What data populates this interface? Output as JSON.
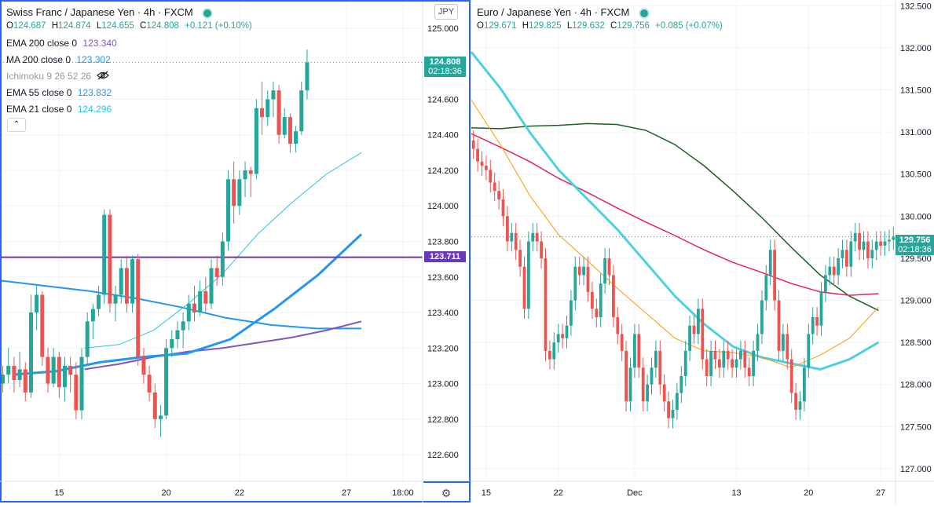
{
  "chart_data": [
    {
      "type": "candlestick",
      "title": "Swiss Franc / Japanese Yen · 4h · FXCM",
      "ohlc_readout": {
        "o_label": "O",
        "o": "124.687",
        "h_label": "H",
        "h": "124.874",
        "l_label": "L",
        "l": "124.655",
        "c_label": "C",
        "c": "124.808",
        "change": "+0.121 (+0.10%)"
      },
      "currency": "JPY",
      "indicators": [
        {
          "label": "EMA 200 close 0",
          "value": "123.340",
          "color": "#7e57c2"
        },
        {
          "label": "MA 200 close 0",
          "value": "123.302",
          "color": "#2196f3"
        },
        {
          "label": "Ichimoku 9 26 52 26",
          "value": "",
          "color": "#9598a1"
        },
        {
          "label": "EMA 55 close 0",
          "value": "123.832",
          "color": "#2196f3"
        },
        {
          "label": "EMA 21 close 0",
          "value": "124.296",
          "color": "#26c6da"
        }
      ],
      "ylim": [
        122.45,
        125.15
      ],
      "y_ticks": [
        "125.000",
        "124.600",
        "124.400",
        "124.200",
        "124.000",
        "123.800",
        "123.600",
        "123.400",
        "123.200",
        "123.000",
        "122.800",
        "122.600"
      ],
      "y_tick_values": [
        125.0,
        124.6,
        124.4,
        124.2,
        124.0,
        123.8,
        123.6,
        123.4,
        123.2,
        123.0,
        122.8,
        122.6
      ],
      "x_ticks": [
        {
          "label": "15",
          "t": 10
        },
        {
          "label": "20",
          "t": 29
        },
        {
          "label": "22",
          "t": 42
        },
        {
          "label": "27",
          "t": 61
        },
        {
          "label": "18:00",
          "t": 71
        }
      ],
      "x_count": 75,
      "last_price": "124.808",
      "last_price_value": 124.808,
      "countdown": "02:18:36",
      "hline_price": "123.711",
      "hline_value": 123.711,
      "bars": [
        [
          123.0,
          123.1,
          122.95,
          123.05
        ],
        [
          123.05,
          123.2,
          123.0,
          123.1
        ],
        [
          123.1,
          123.15,
          122.95,
          123.02
        ],
        [
          123.02,
          123.18,
          122.98,
          123.08
        ],
        [
          123.08,
          123.12,
          122.9,
          122.95
        ],
        [
          122.95,
          123.5,
          122.92,
          123.4
        ],
        [
          123.4,
          123.55,
          123.3,
          123.5
        ],
        [
          123.5,
          123.52,
          123.1,
          123.15
        ],
        [
          123.15,
          123.2,
          122.95,
          123.0
        ],
        [
          123.0,
          123.2,
          122.98,
          123.15
        ],
        [
          123.15,
          123.18,
          122.92,
          122.98
        ],
        [
          122.98,
          123.15,
          122.9,
          123.1
        ],
        [
          123.1,
          123.15,
          122.95,
          123.05
        ],
        [
          123.05,
          123.12,
          122.8,
          122.85
        ],
        [
          122.85,
          123.2,
          122.8,
          123.15
        ],
        [
          123.15,
          123.4,
          123.1,
          123.35
        ],
        [
          123.35,
          123.45,
          123.25,
          123.42
        ],
        [
          123.42,
          123.55,
          123.38,
          123.5
        ],
        [
          123.5,
          123.98,
          123.45,
          123.95
        ],
        [
          123.95,
          123.98,
          123.4,
          123.45
        ],
        [
          123.45,
          123.55,
          123.35,
          123.5
        ],
        [
          123.5,
          123.7,
          123.45,
          123.65
        ],
        [
          123.65,
          123.72,
          123.4,
          123.45
        ],
        [
          123.45,
          123.72,
          123.4,
          123.7
        ],
        [
          123.7,
          123.73,
          123.1,
          123.15
        ],
        [
          123.15,
          123.2,
          123.0,
          123.05
        ],
        [
          123.05,
          123.1,
          122.9,
          122.95
        ],
        [
          122.95,
          123.0,
          122.75,
          122.8
        ],
        [
          122.8,
          122.88,
          122.7,
          122.82
        ],
        [
          122.82,
          123.25,
          122.8,
          123.2
        ],
        [
          123.2,
          123.3,
          123.15,
          123.25
        ],
        [
          123.25,
          123.35,
          123.2,
          123.3
        ],
        [
          123.3,
          123.4,
          123.2,
          123.35
        ],
        [
          123.35,
          123.5,
          123.3,
          123.45
        ],
        [
          123.45,
          123.55,
          123.35,
          123.4
        ],
        [
          123.4,
          123.58,
          123.38,
          123.52
        ],
        [
          123.52,
          123.6,
          123.4,
          123.45
        ],
        [
          123.45,
          123.7,
          123.42,
          123.65
        ],
        [
          123.65,
          123.72,
          123.55,
          123.6
        ],
        [
          123.6,
          123.85,
          123.55,
          123.8
        ],
        [
          123.8,
          124.2,
          123.75,
          124.15
        ],
        [
          124.15,
          124.25,
          123.9,
          124.0
        ],
        [
          124.0,
          124.2,
          123.95,
          124.15
        ],
        [
          124.15,
          124.25,
          124.05,
          124.2
        ],
        [
          124.2,
          124.22,
          124.05,
          124.18
        ],
        [
          124.18,
          124.6,
          124.15,
          124.55
        ],
        [
          124.55,
          124.7,
          124.4,
          124.5
        ],
        [
          124.5,
          124.65,
          124.45,
          124.6
        ],
        [
          124.6,
          124.7,
          124.5,
          124.65
        ],
        [
          124.65,
          124.68,
          124.35,
          124.4
        ],
        [
          124.4,
          124.55,
          124.38,
          124.5
        ],
        [
          124.5,
          124.52,
          124.3,
          124.35
        ],
        [
          124.35,
          124.45,
          124.3,
          124.42
        ],
        [
          124.42,
          124.7,
          124.4,
          124.65
        ],
        [
          124.65,
          124.88,
          124.6,
          124.808
        ]
      ],
      "ema21": [
        123.2,
        123.22,
        123.3,
        123.45,
        123.62,
        123.84,
        124.02,
        124.18,
        124.3
      ],
      "ema55": [
        123.05,
        123.07,
        123.12,
        123.15,
        123.17,
        123.25,
        123.42,
        123.61,
        123.84
      ],
      "ma200": [
        123.58,
        123.55,
        123.52,
        123.48,
        123.43,
        123.37,
        123.33,
        123.31,
        123.31
      ],
      "ema200": [
        123.08,
        123.11,
        123.15,
        123.18,
        123.2,
        123.23,
        123.26,
        123.3,
        123.35
      ]
    },
    {
      "type": "candlestick",
      "title": "Euro / Japanese Yen · 4h · FXCM",
      "ohlc_readout": {
        "o_label": "O",
        "o": "129.671",
        "h_label": "H",
        "h": "129.825",
        "l_label": "L",
        "l": "129.632",
        "c_label": "C",
        "c": "129.756",
        "change": "+0.085 (+0.07%)"
      },
      "ylim": [
        126.85,
        132.55
      ],
      "y_ticks": [
        "132.500",
        "132.000",
        "131.500",
        "131.000",
        "130.500",
        "130.000",
        "129.500",
        "129.000",
        "128.500",
        "128.000",
        "127.500",
        "127.000"
      ],
      "y_tick_values": [
        132.5,
        132.0,
        131.5,
        131.0,
        130.5,
        130.0,
        129.5,
        129.0,
        128.5,
        128.0,
        127.5,
        127.0
      ],
      "x_ticks": [
        {
          "label": "15",
          "t": 3
        },
        {
          "label": "22",
          "t": 20
        },
        {
          "label": "Dec",
          "t": 38
        },
        {
          "label": "13",
          "t": 62
        },
        {
          "label": "20",
          "t": 79
        },
        {
          "label": "27",
          "t": 96
        }
      ],
      "x_count": 100,
      "last_price": "129.756",
      "last_price_value": 129.756,
      "countdown": "02:18:36",
      "closes": [
        130.8,
        130.65,
        130.6,
        130.55,
        130.4,
        130.3,
        130.2,
        130.0,
        129.7,
        129.8,
        129.6,
        129.4,
        128.9,
        129.7,
        129.8,
        129.7,
        129.5,
        128.4,
        128.3,
        128.5,
        128.6,
        128.55,
        128.7,
        129.0,
        129.4,
        129.3,
        129.4,
        129.1,
        128.9,
        128.8,
        129.2,
        129.5,
        129.3,
        128.8,
        128.6,
        128.4,
        127.8,
        128.2,
        128.6,
        128.2,
        127.8,
        128.0,
        128.2,
        128.4,
        128.0,
        127.8,
        127.6,
        127.7,
        127.9,
        128.1,
        128.4,
        128.7,
        128.6,
        128.9,
        128.3,
        128.1,
        128.4,
        128.3,
        128.2,
        128.4,
        128.3,
        128.2,
        128.3,
        128.4,
        128.2,
        128.1,
        128.4,
        128.6,
        129.0,
        129.3,
        129.6,
        129.0,
        128.4,
        128.6,
        128.3,
        127.9,
        127.7,
        127.8,
        128.2,
        128.6,
        128.8,
        128.7,
        129.1,
        129.3,
        129.4,
        129.3,
        129.5,
        129.6,
        129.4,
        129.7,
        129.8,
        129.6,
        129.7,
        129.5,
        129.6,
        129.7,
        129.65,
        129.7,
        129.72,
        129.756
      ],
      "ema200": [
        131.05,
        131.04,
        131.07,
        131.08,
        131.1,
        131.09,
        131.02,
        130.85,
        130.6,
        130.3,
        129.98,
        129.63,
        129.3,
        129.05,
        128.88
      ],
      "ma200": [
        130.98,
        130.82,
        130.65,
        130.45,
        130.28,
        130.1,
        129.93,
        129.77,
        129.6,
        129.45,
        129.33,
        129.2,
        129.1,
        129.06,
        129.08
      ],
      "ema55": [
        131.95,
        131.52,
        131.0,
        130.55,
        130.2,
        129.85,
        129.45,
        129.05,
        128.72,
        128.45,
        128.32,
        128.25,
        128.18,
        128.3,
        128.5
      ],
      "ema21": [
        131.38,
        130.85,
        130.25,
        129.78,
        129.47,
        129.15,
        128.85,
        128.55,
        128.4,
        128.38,
        128.32,
        128.2,
        128.35,
        128.55,
        128.92
      ]
    }
  ]
}
